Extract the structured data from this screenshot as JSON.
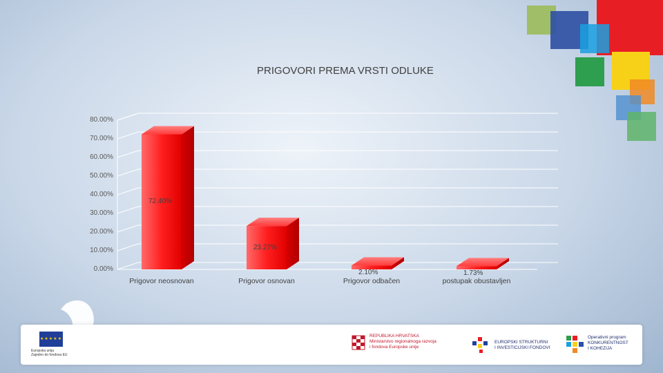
{
  "chart_data": {
    "type": "bar",
    "title": "PRIGOVORI PREMA VRSTI ODLUKE",
    "categories": [
      "Prigovor neosnovan",
      "Prigovor osnovan",
      "Prigovor odbačen",
      "postupak obustavljen"
    ],
    "values": [
      72.4,
      23.27,
      2.1,
      1.73
    ],
    "data_labels": [
      "72.40%",
      "23.27%",
      "2.10%",
      "1.73%"
    ],
    "ylim": [
      0,
      80
    ],
    "yticks": [
      "0.00%",
      "10.00%",
      "20.00%",
      "30.00%",
      "40.00%",
      "50.00%",
      "60.00%",
      "70.00%",
      "80.00%"
    ],
    "grid": true,
    "bar_color": "#ff1f1f"
  },
  "footer": {
    "eu_caption": "Europska unija\nZajedno do fondova EU",
    "ministry": "REPUBLIKA HRVATSKA\nMinistarstvo regionalnoga razvoja\ni fondova Europske unije",
    "esif": "EUROPSKI STRUKTURNI\nI INVESTICIJSKI FONDOVI",
    "op": "Operativni program\nKONKURENTNOST\nI KOHEZIJA"
  },
  "decor_colors": [
    "#9bbb59",
    "#2e4fa3",
    "#e81e25",
    "#1aa0e0",
    "#2e9e4f",
    "#f7d117",
    "#f08a24",
    "#5fb46a"
  ]
}
